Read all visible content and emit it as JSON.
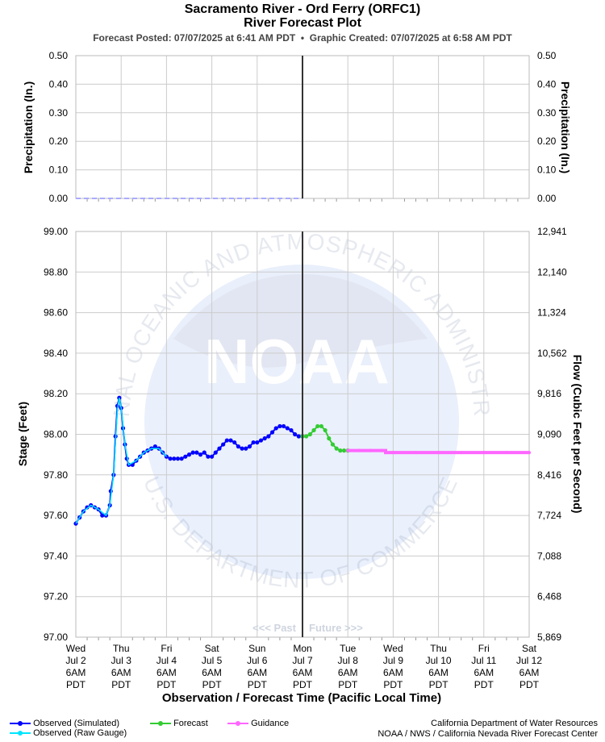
{
  "header": {
    "title": "Sacramento River - Ord Ferry (ORFC1)",
    "subtitle": "River Forecast Plot",
    "posted_label": "Forecast Posted: 07/07/2025 at 6:41 AM PDT",
    "separator": "•",
    "created_label": "Graphic Created: 07/07/2025 at 6:58 AM PDT"
  },
  "watermark": {
    "logo_text": "NOAA",
    "ring_top": "NATIONAL OCEANIC AND ATMOSPHERIC ADMINISTRATION",
    "ring_bottom": "U.S. DEPARTMENT OF COMMERCE"
  },
  "divider": {
    "past_label": "<<< Past",
    "future_label": "Future >>>"
  },
  "legend": {
    "observed_sim": "Observed (Simulated)",
    "observed_raw": "Observed (Raw Gauge)",
    "forecast": "Forecast",
    "guidance": "Guidance"
  },
  "credits": {
    "line1": "California Department of Water Resources",
    "line2": "NOAA / NWS / California Nevada River Forecast Center"
  },
  "colors": {
    "observed_sim": "#0000ff",
    "observed_raw": "#00e5ff",
    "forecast": "#33cc33",
    "guidance": "#ff66ff",
    "now_line": "#333333",
    "grid": "#cccccc",
    "precip": "#aaaaff"
  },
  "chart_data": [
    {
      "type": "line",
      "title": "",
      "xlabel": "",
      "ylabel": "Precipitation (In.)",
      "ylabel_right": "Precipitation (In.)",
      "ylim": [
        0,
        0.5
      ],
      "y_ticks": [
        "0.00",
        "0.10",
        "0.20",
        "0.30",
        "0.40",
        "0.50"
      ],
      "series": [
        {
          "x": [
            0,
            120
          ],
          "values": [
            0,
            0
          ]
        }
      ]
    },
    {
      "type": "line",
      "title": "",
      "xlabel": "Observation / Forecast Time (Pacific Local Time)",
      "ylabel": "Stage (Feet)",
      "ylabel_right": "Flow (Cubic Feet per Second)",
      "x_unit": "hours since Wed Jul 2 6AM PDT",
      "xlim": [
        0,
        240
      ],
      "ylim": [
        97.0,
        99.0
      ],
      "now_x": 120,
      "y_ticks": [
        "97.00",
        "97.20",
        "97.40",
        "97.60",
        "97.80",
        "98.00",
        "98.20",
        "98.40",
        "98.60",
        "98.80",
        "99.00"
      ],
      "y_ticks_right": [
        "5,869",
        "6,468",
        "7,088",
        "7,724",
        "8,416",
        "9,090",
        "9,816",
        "10,562",
        "11,324",
        "12,140",
        "12,941"
      ],
      "x_ticks": [
        {
          "day": "Wed",
          "date": "Jul 2",
          "time": "6AM",
          "tz": "PDT"
        },
        {
          "day": "Thu",
          "date": "Jul 3",
          "time": "6AM",
          "tz": "PDT"
        },
        {
          "day": "Fri",
          "date": "Jul 4",
          "time": "6AM",
          "tz": "PDT"
        },
        {
          "day": "Sat",
          "date": "Jul 5",
          "time": "6AM",
          "tz": "PDT"
        },
        {
          "day": "Sun",
          "date": "Jul 6",
          "time": "6AM",
          "tz": "PDT"
        },
        {
          "day": "Mon",
          "date": "Jul 7",
          "time": "6AM",
          "tz": "PDT"
        },
        {
          "day": "Tue",
          "date": "Jul 8",
          "time": "6AM",
          "tz": "PDT"
        },
        {
          "day": "Wed",
          "date": "Jul 9",
          "time": "6AM",
          "tz": "PDT"
        },
        {
          "day": "Thu",
          "date": "Jul 10",
          "time": "6AM",
          "tz": "PDT"
        },
        {
          "day": "Fri",
          "date": "Jul 11",
          "time": "6AM",
          "tz": "PDT"
        },
        {
          "day": "Sat",
          "date": "Jul 12",
          "time": "6AM",
          "tz": "PDT"
        }
      ],
      "series": [
        {
          "name": "Observed (Simulated)",
          "x": [
            0,
            2,
            4,
            6,
            8,
            10,
            12,
            14,
            16,
            18,
            18.5,
            20,
            21,
            22,
            23,
            24,
            25,
            26,
            27,
            28,
            30,
            32,
            34,
            36,
            38,
            40,
            42,
            44,
            46,
            48,
            50,
            52,
            54,
            56,
            58,
            60,
            62,
            64,
            66,
            68,
            70,
            72,
            74,
            76,
            78,
            80,
            82,
            84,
            86,
            88,
            90,
            92,
            94,
            96,
            98,
            100,
            102,
            104,
            106,
            108,
            110,
            112,
            114,
            116,
            118,
            120
          ],
          "values": [
            97.56,
            97.59,
            97.62,
            97.64,
            97.65,
            97.64,
            97.63,
            97.6,
            97.6,
            97.65,
            97.72,
            97.8,
            97.99,
            98.14,
            98.18,
            98.13,
            98.03,
            97.95,
            97.88,
            97.85,
            97.85,
            97.87,
            97.89,
            97.91,
            97.92,
            97.93,
            97.94,
            97.93,
            97.91,
            97.89,
            97.88,
            97.88,
            97.88,
            97.88,
            97.89,
            97.9,
            97.91,
            97.91,
            97.9,
            97.91,
            97.89,
            97.89,
            97.91,
            97.93,
            97.95,
            97.97,
            97.97,
            97.96,
            97.94,
            97.93,
            97.93,
            97.94,
            97.96,
            97.96,
            97.97,
            97.98,
            97.99,
            98.01,
            98.03,
            98.04,
            98.04,
            98.03,
            98.02,
            98.0,
            97.99,
            97.99
          ]
        },
        {
          "name": "Observed (Raw Gauge)",
          "x": [
            0,
            4,
            8,
            12,
            16,
            18,
            20,
            22,
            23,
            24,
            26,
            28,
            32,
            36,
            40,
            44,
            48
          ],
          "values": [
            97.56,
            97.62,
            97.65,
            97.63,
            97.6,
            97.65,
            97.8,
            98.12,
            98.18,
            98.13,
            97.95,
            97.85,
            97.87,
            97.91,
            97.93,
            97.93,
            97.89
          ]
        },
        {
          "name": "Forecast",
          "x": [
            120,
            122,
            124,
            126,
            128,
            130,
            132,
            134,
            136,
            138,
            140,
            142,
            144
          ],
          "values": [
            97.99,
            97.99,
            98.0,
            98.02,
            98.04,
            98.04,
            98.02,
            97.98,
            97.95,
            97.93,
            97.92,
            97.92,
            97.92
          ],
          "future": true
        },
        {
          "name": "Guidance",
          "x": [
            144,
            150,
            156,
            162,
            164,
            168,
            180,
            192,
            204,
            216,
            228,
            240
          ],
          "values": [
            97.92,
            97.92,
            97.92,
            97.92,
            97.91,
            97.91,
            97.91,
            97.91,
            97.91,
            97.91,
            97.91,
            97.91
          ]
        }
      ]
    }
  ]
}
